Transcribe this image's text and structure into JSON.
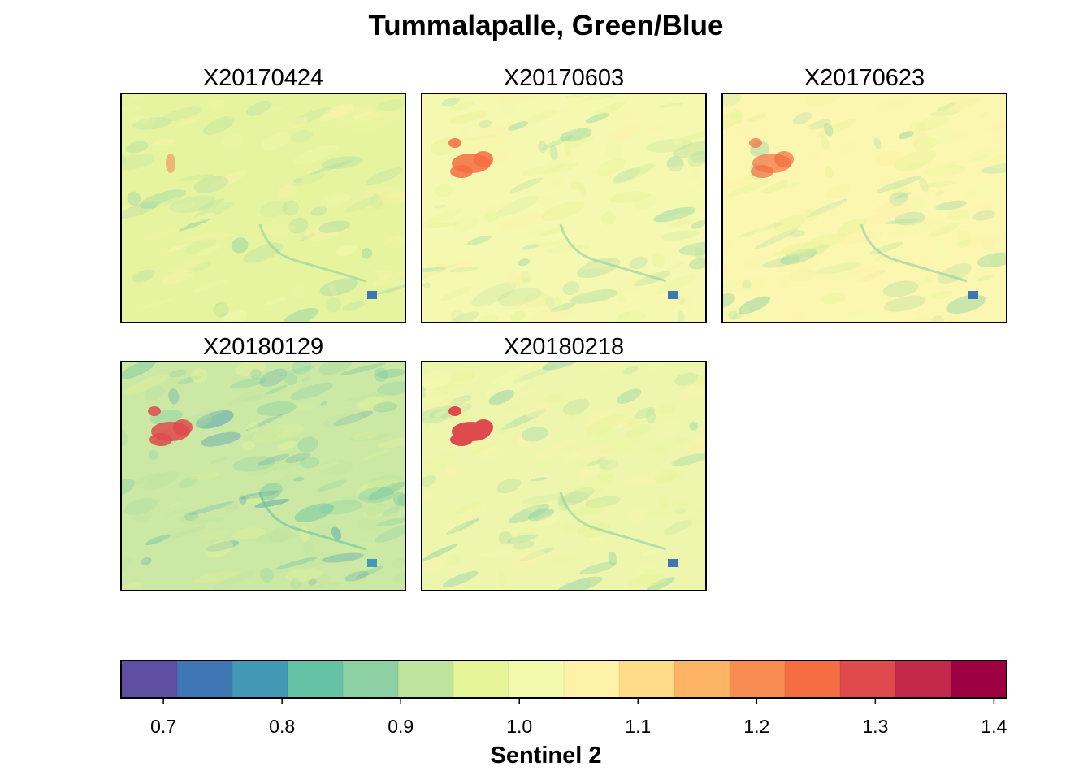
{
  "chart_data": {
    "type": "heatmap",
    "title": "Tummalapalle, Green/Blue",
    "panels": [
      {
        "label": "X20170424"
      },
      {
        "label": "X20170603"
      },
      {
        "label": "X20170623"
      },
      {
        "label": "X20180129"
      },
      {
        "label": "X20180218"
      }
    ],
    "colorbar": {
      "label": "Sentinel 2",
      "range": [
        0.665,
        1.41
      ],
      "ticks": [
        0.7,
        0.8,
        0.9,
        1.0,
        1.1,
        1.2,
        1.3,
        1.4
      ],
      "tick_labels": [
        "0.7",
        "0.8",
        "0.9",
        "1.0",
        "1.1",
        "1.2",
        "1.3",
        "1.4"
      ],
      "colors": [
        "#5E4FA2",
        "#3F76B4",
        "#4299B6",
        "#66C2A5",
        "#8CD1A4",
        "#BEE4A0",
        "#E6F598",
        "#F4FAAD",
        "#FEF2A9",
        "#FEDC88",
        "#FDB465",
        "#F88D52",
        "#F46D43",
        "#DF4A4D",
        "#C2294A",
        "#9E0142"
      ]
    }
  }
}
